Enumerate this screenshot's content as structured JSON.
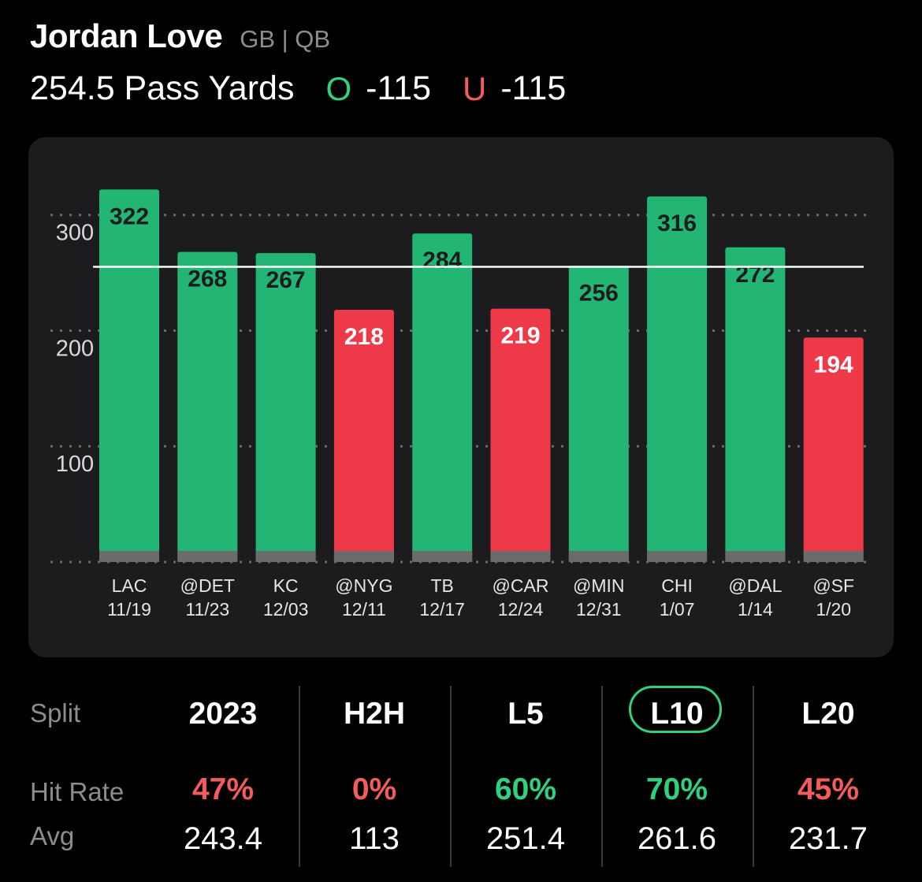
{
  "header": {
    "player_name": "Jordan Love",
    "player_meta": "GB | QB",
    "prop_line": "254.5 Pass Yards",
    "over_symbol": "O",
    "over_odds": "-115",
    "under_symbol": "U",
    "under_odds": "-115"
  },
  "colors": {
    "over": "#22b573",
    "under": "#ee3a48",
    "over_text": "#2fd07f",
    "under_text": "#f25c5c",
    "card_bg": "#1c1c1e"
  },
  "chart_data": {
    "type": "bar",
    "title": "",
    "xlabel": "",
    "ylabel": "",
    "ylim": [
      0,
      340
    ],
    "yticks": [
      100,
      200,
      300
    ],
    "line_value": 254.5,
    "categories": [
      {
        "opponent": "LAC",
        "date": "11/19"
      },
      {
        "opponent": "@DET",
        "date": "11/23"
      },
      {
        "opponent": "KC",
        "date": "12/03"
      },
      {
        "opponent": "@NYG",
        "date": "12/11"
      },
      {
        "opponent": "TB",
        "date": "12/17"
      },
      {
        "opponent": "@CAR",
        "date": "12/24"
      },
      {
        "opponent": "@MIN",
        "date": "12/31"
      },
      {
        "opponent": "CHI",
        "date": "1/07"
      },
      {
        "opponent": "@DAL",
        "date": "1/14"
      },
      {
        "opponent": "@SF",
        "date": "1/20"
      }
    ],
    "values": [
      322,
      268,
      267,
      218,
      284,
      219,
      256,
      316,
      272,
      194
    ],
    "results": [
      "over",
      "over",
      "over",
      "under",
      "over",
      "under",
      "over",
      "over",
      "over",
      "under"
    ]
  },
  "stats": {
    "row_labels": {
      "split": "Split",
      "hit_rate": "Hit Rate",
      "avg": "Avg"
    },
    "columns": [
      {
        "split": "2023",
        "hit_rate": "47%",
        "avg": "243.4",
        "hit_status": "under",
        "selected": false
      },
      {
        "split": "H2H",
        "hit_rate": "0%",
        "avg": "113",
        "hit_status": "under",
        "selected": false
      },
      {
        "split": "L5",
        "hit_rate": "60%",
        "avg": "251.4",
        "hit_status": "over",
        "selected": false
      },
      {
        "split": "L10",
        "hit_rate": "70%",
        "avg": "261.6",
        "hit_status": "over",
        "selected": true
      },
      {
        "split": "L20",
        "hit_rate": "45%",
        "avg": "231.7",
        "hit_status": "under",
        "selected": false
      }
    ]
  }
}
